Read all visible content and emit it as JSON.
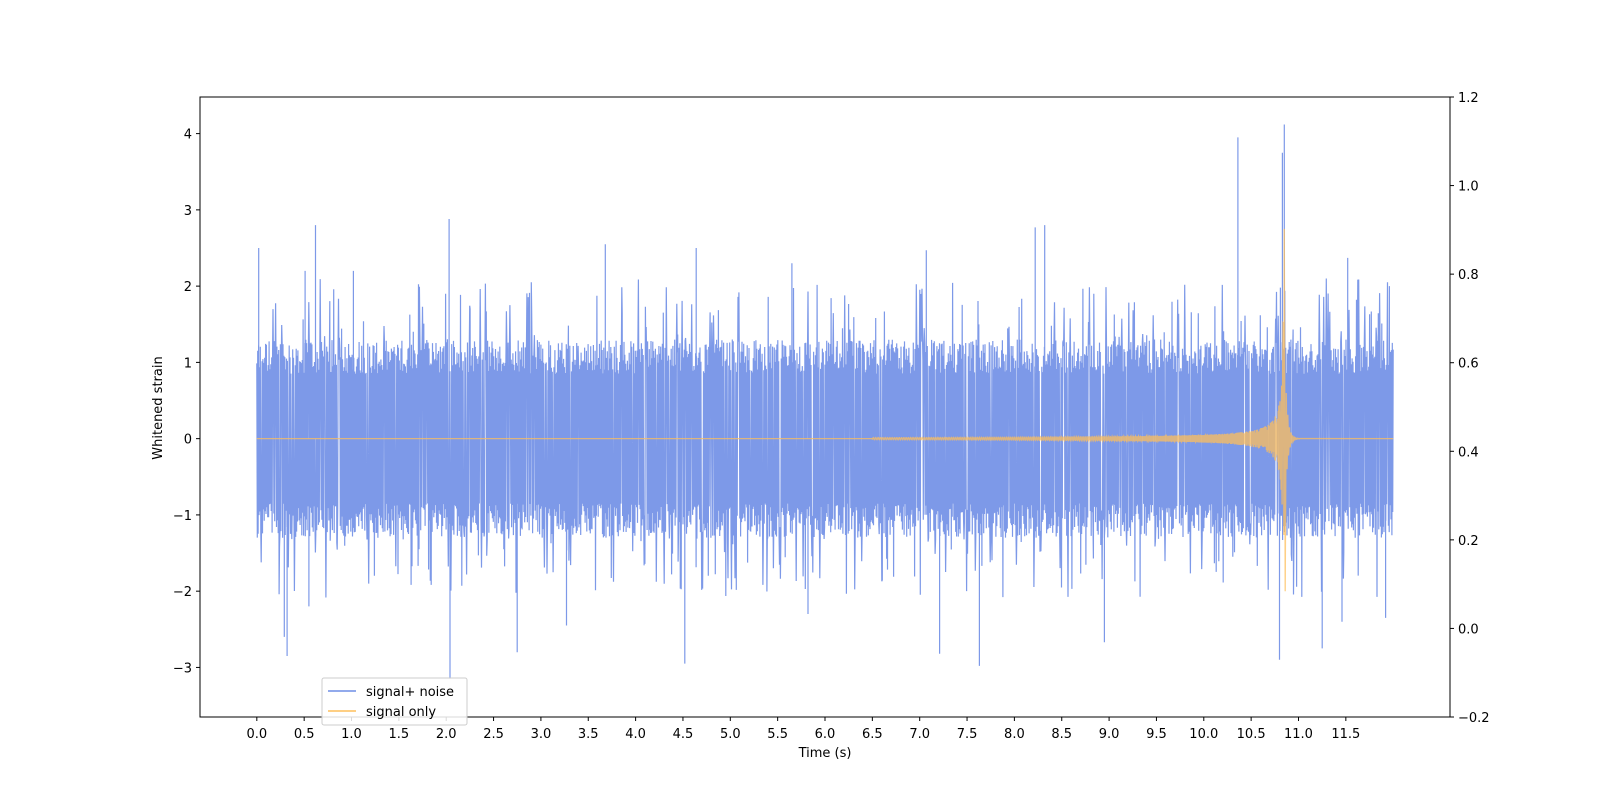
{
  "chart_data": {
    "type": "line",
    "title": "",
    "xlabel": "Time (s)",
    "ylabel": "Whitened strain",
    "xlim": [
      -0.6,
      12.6
    ],
    "ylim": [
      -3.65,
      4.48
    ],
    "y2lim": [
      -0.2,
      1.2
    ],
    "x_ticks": [
      0.0,
      0.5,
      1.0,
      1.5,
      2.0,
      2.5,
      3.0,
      3.5,
      4.0,
      4.5,
      5.0,
      5.5,
      6.0,
      6.5,
      7.0,
      7.5,
      8.0,
      8.5,
      9.0,
      9.5,
      10.0,
      10.5,
      11.0,
      11.5
    ],
    "x_tick_labels": [
      "0.0",
      "0.5",
      "1.0",
      "1.5",
      "2.0",
      "2.5",
      "3.0",
      "3.5",
      "4.0",
      "4.5",
      "5.0",
      "5.5",
      "6.0",
      "6.5",
      "7.0",
      "7.5",
      "8.0",
      "8.5",
      "9.0",
      "9.5",
      "10.0",
      "10.5",
      "11.0",
      "11.5"
    ],
    "y_ticks": [
      -3,
      -2,
      -1,
      0,
      1,
      2,
      3,
      4
    ],
    "y_tick_labels": [
      "−3",
      "−2",
      "−1",
      "0",
      "1",
      "2",
      "3",
      "4"
    ],
    "y2_ticks": [
      -0.2,
      0.0,
      0.2,
      0.4,
      0.6,
      0.8,
      1.0,
      1.2
    ],
    "y2_tick_labels": [
      "−0.2",
      "0.0",
      "0.2",
      "0.4",
      "0.6",
      "0.8",
      "1.0",
      "1.2"
    ],
    "grid": false,
    "legend_position": "lower-left",
    "series": [
      {
        "name": "signal+ noise",
        "color": "#6f8ee6",
        "x_range": [
          0.0,
          12.0
        ],
        "envelope_low": -1.2,
        "envelope_high": 1.2,
        "peaks": [
          {
            "x": 0.02,
            "y": 2.5
          },
          {
            "x": 0.62,
            "y": 2.8
          },
          {
            "x": 0.29,
            "y": -2.6
          },
          {
            "x": 0.32,
            "y": -2.85
          },
          {
            "x": 0.51,
            "y": 2.2
          },
          {
            "x": 0.55,
            "y": -2.2
          },
          {
            "x": 1.02,
            "y": 2.2
          },
          {
            "x": 2.03,
            "y": 2.88
          },
          {
            "x": 2.04,
            "y": -3.15
          },
          {
            "x": 2.75,
            "y": -2.8
          },
          {
            "x": 3.27,
            "y": -2.45
          },
          {
            "x": 3.68,
            "y": 2.55
          },
          {
            "x": 4.52,
            "y": -2.95
          },
          {
            "x": 4.64,
            "y": 2.5
          },
          {
            "x": 5.65,
            "y": 2.3
          },
          {
            "x": 5.82,
            "y": -2.3
          },
          {
            "x": 7.07,
            "y": 2.47
          },
          {
            "x": 7.21,
            "y": -2.82
          },
          {
            "x": 7.63,
            "y": -2.98
          },
          {
            "x": 8.22,
            "y": 2.77
          },
          {
            "x": 8.32,
            "y": 2.8
          },
          {
            "x": 8.95,
            "y": -2.67
          },
          {
            "x": 10.36,
            "y": 3.95
          },
          {
            "x": 10.8,
            "y": -2.9
          },
          {
            "x": 10.85,
            "y": 4.12
          },
          {
            "x": 10.83,
            "y": 3.75
          },
          {
            "x": 11.25,
            "y": -2.75
          },
          {
            "x": 11.46,
            "y": -2.4
          },
          {
            "x": 11.52,
            "y": 2.37
          },
          {
            "x": 11.92,
            "y": -2.35
          },
          {
            "x": 11.96,
            "y": 2.0
          }
        ]
      },
      {
        "name": "signal only",
        "color": "#fdbf5c",
        "x_range": [
          0.0,
          12.0
        ],
        "chirp_start": 6.5,
        "merger_time": 10.85,
        "peak_amplitude": 2.75,
        "min_amplitude": -2.0
      }
    ]
  }
}
